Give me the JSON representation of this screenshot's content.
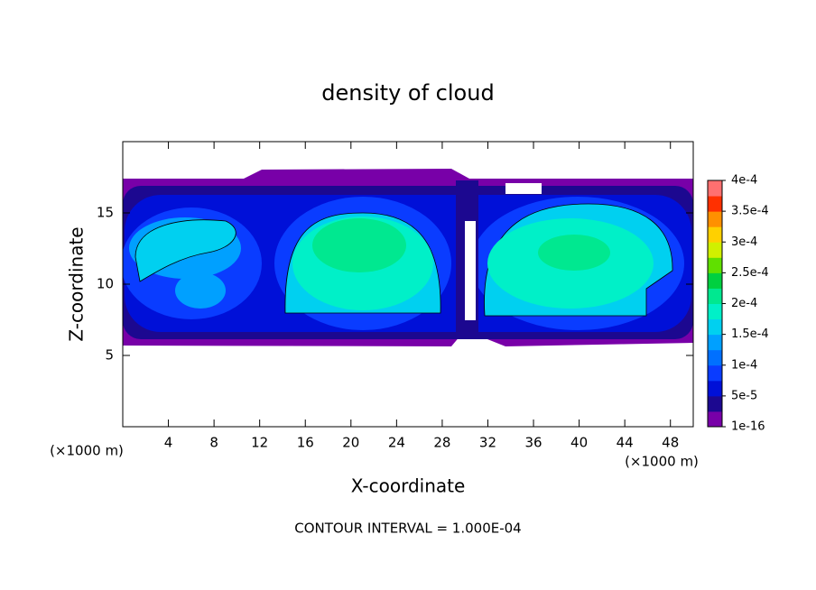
{
  "chart_data": {
    "type": "contour",
    "title": "density of cloud",
    "xlabel": "X-coordinate",
    "ylabel": "Z-coordinate",
    "xunit": "(×1000 m)",
    "xlim": [
      0,
      50
    ],
    "xticks": [
      4,
      8,
      12,
      16,
      20,
      24,
      28,
      32,
      36,
      40,
      44,
      48
    ],
    "ylim": [
      0,
      20
    ],
    "yticks": [
      5,
      10,
      15
    ],
    "clim": [
      1e-16,
      0.0004
    ],
    "cticks": [
      {
        "value": 1e-16,
        "label": "1e-16"
      },
      {
        "value": 5e-05,
        "label": "5e-5"
      },
      {
        "value": 0.0001,
        "label": "1e-4"
      },
      {
        "value": 0.00015,
        "label": "1.5e-4"
      },
      {
        "value": 0.0002,
        "label": "2e-4"
      },
      {
        "value": 0.00025,
        "label": "2.5e-4"
      },
      {
        "value": 0.0003,
        "label": "3e-4"
      },
      {
        "value": 0.00035,
        "label": "3.5e-4"
      },
      {
        "value": 0.0004,
        "label": "4e-4"
      }
    ],
    "colors": [
      "#7800a8",
      "#1c0890",
      "#0010d8",
      "#0a3cff",
      "#0070ff",
      "#00a0ff",
      "#00d0f0",
      "#00f0c8",
      "#00e890",
      "#00d040",
      "#60e000",
      "#d0f000",
      "#ffd000",
      "#ff9000",
      "#ff3000",
      "#ff7070"
    ],
    "note": "CONTOUR INTERVAL = 1.000E-04"
  }
}
